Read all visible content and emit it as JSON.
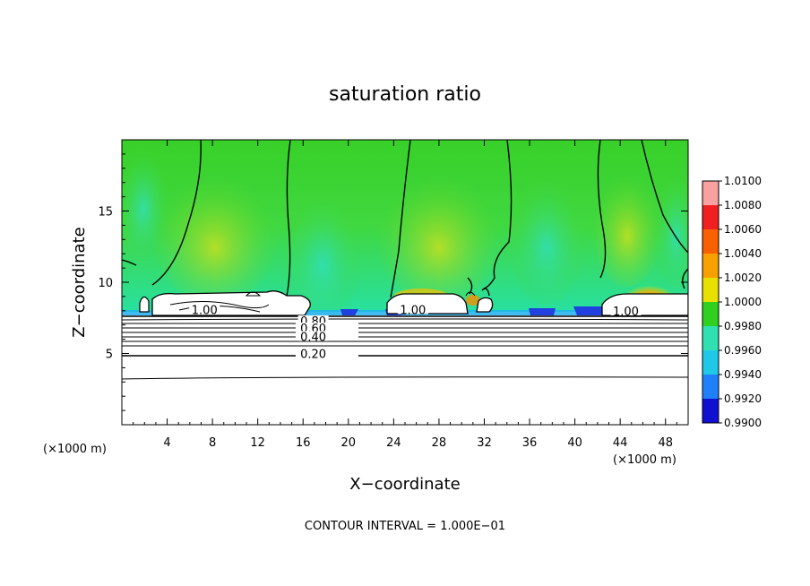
{
  "chart_data": {
    "type": "heatmap",
    "title": "saturation ratio",
    "xlabel": "X−coordinate",
    "ylabel": "Z−coordinate",
    "x_unit": "(×1000 m)",
    "z_unit": "(×1000 m)",
    "xlim": [
      0,
      50
    ],
    "ylim": [
      0,
      20
    ],
    "x_ticks": [
      4,
      8,
      12,
      16,
      20,
      24,
      28,
      32,
      36,
      40,
      44,
      48
    ],
    "y_ticks": [
      5,
      10,
      15
    ],
    "colorbar": {
      "values": [
        1.01,
        1.008,
        1.006,
        1.004,
        1.002,
        1.0,
        0.998,
        0.996,
        0.994,
        0.992,
        0.99
      ],
      "labels": [
        "1.0100",
        "1.0080",
        "1.0060",
        "1.0040",
        "1.0020",
        "1.0000",
        "0.9980",
        "0.9960",
        "0.9940",
        "0.9920",
        "0.9900"
      ],
      "colors": [
        "#f9a0a0",
        "#f02020",
        "#f86000",
        "#f8a000",
        "#e8e000",
        "#30d020",
        "#30e0b0",
        "#20c8e8",
        "#2080f8",
        "#1010d0",
        "#602090"
      ]
    },
    "contour_labels": [
      {
        "text": "1.00",
        "x": 7.3,
        "z": 7.9
      },
      {
        "text": "1.00",
        "x": 25.7,
        "z": 7.9
      },
      {
        "text": "1.00",
        "x": 44.5,
        "z": 7.8
      },
      {
        "text": "0.80",
        "x": 16.9,
        "z": 7.1
      },
      {
        "text": "0.60",
        "x": 16.9,
        "z": 6.6
      },
      {
        "text": "0.40",
        "x": 16.9,
        "z": 6.0
      },
      {
        "text": "0.20",
        "x": 16.9,
        "z": 4.8
      }
    ],
    "contour_interval": "CONTOUR INTERVAL = 1.000E−01"
  }
}
